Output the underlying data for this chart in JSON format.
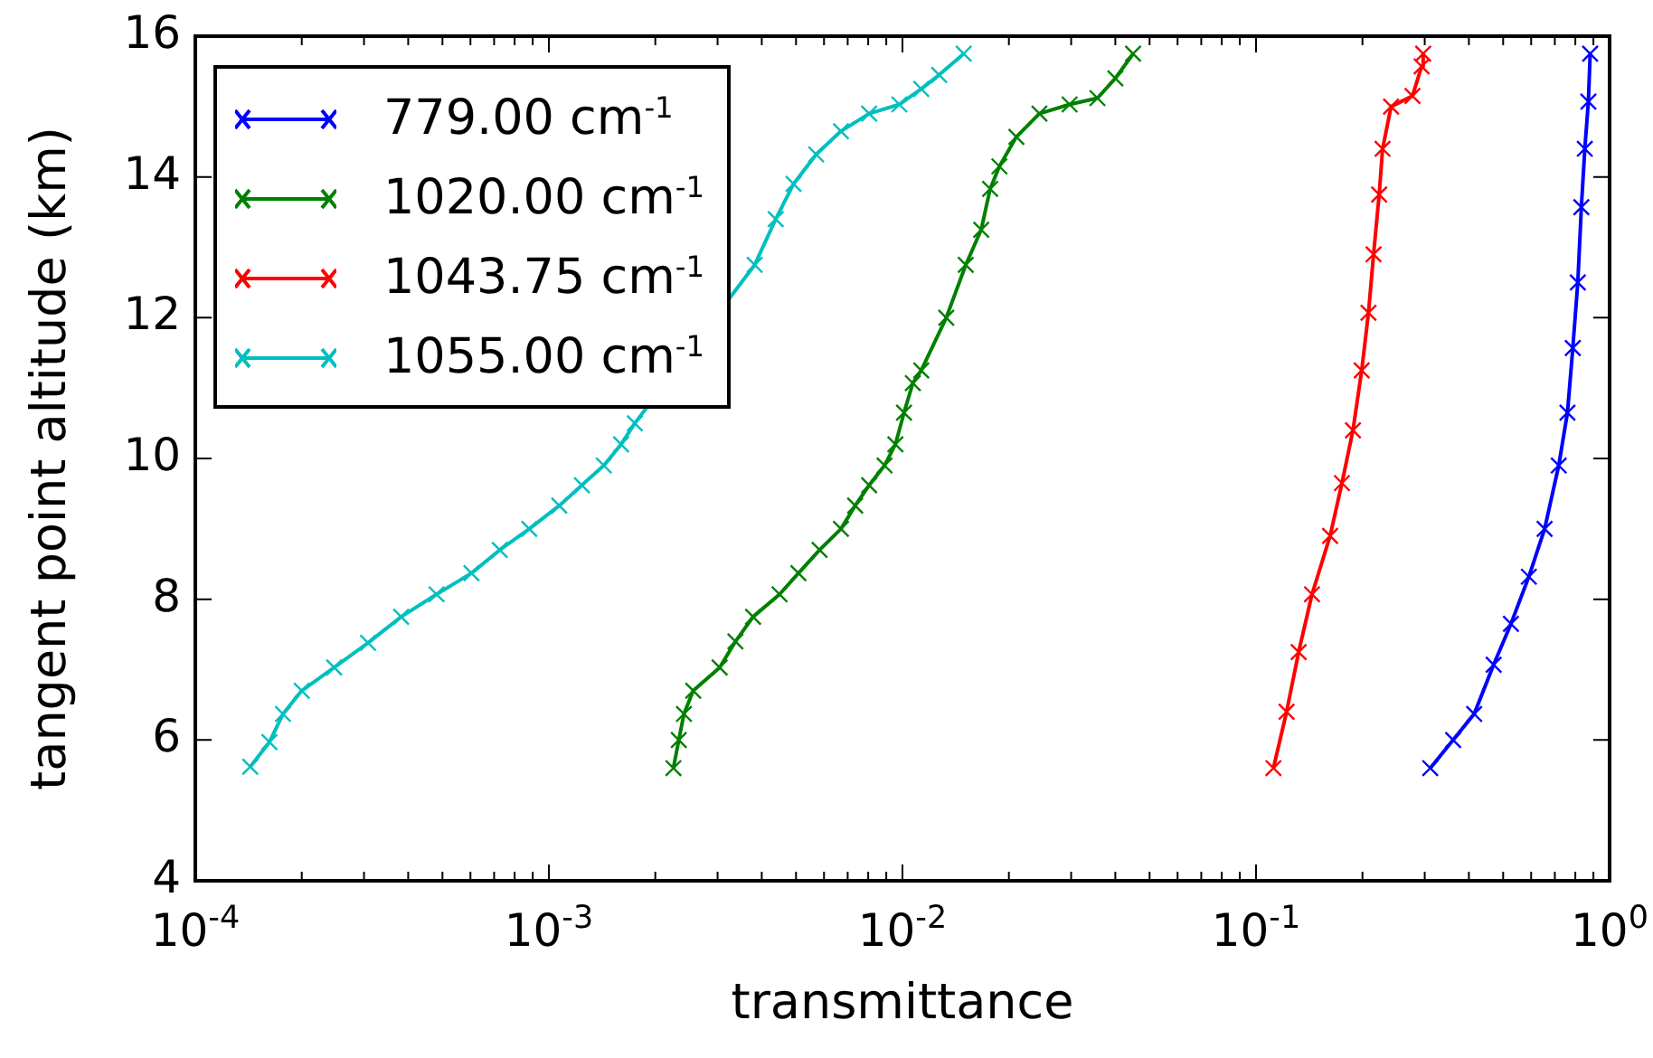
{
  "chart_data": {
    "type": "line",
    "xlabel": "transmittance",
    "ylabel": "tangent point altitude (km)",
    "log": "x",
    "xlim": [
      0.0001,
      1
    ],
    "ylim": [
      4,
      16
    ],
    "xticks": [
      {
        "value": 0.0001,
        "label": "10$^{-4}$"
      },
      {
        "value": 0.0002,
        "label": null
      },
      {
        "value": 0.0003,
        "label": null
      },
      {
        "value": 0.0004,
        "label": null
      },
      {
        "value": 0.0005,
        "label": null
      },
      {
        "value": 0.0006,
        "label": null
      },
      {
        "value": 0.0007,
        "label": null
      },
      {
        "value": 0.0008,
        "label": null
      },
      {
        "value": 0.0009,
        "label": null
      },
      {
        "value": 0.001,
        "label": "10$^{-3}$"
      },
      {
        "value": 0.002,
        "label": null
      },
      {
        "value": 0.003,
        "label": null
      },
      {
        "value": 0.004,
        "label": null
      },
      {
        "value": 0.005,
        "label": null
      },
      {
        "value": 0.006,
        "label": null
      },
      {
        "value": 0.007,
        "label": null
      },
      {
        "value": 0.008,
        "label": null
      },
      {
        "value": 0.009,
        "label": null
      },
      {
        "value": 0.01,
        "label": "10$^{-2}$"
      },
      {
        "value": 0.02,
        "label": null
      },
      {
        "value": 0.03,
        "label": null
      },
      {
        "value": 0.04,
        "label": null
      },
      {
        "value": 0.05,
        "label": null
      },
      {
        "value": 0.06,
        "label": null
      },
      {
        "value": 0.07,
        "label": null
      },
      {
        "value": 0.08,
        "label": null
      },
      {
        "value": 0.09,
        "label": null
      },
      {
        "value": 0.1,
        "label": "10$^{-1}$"
      },
      {
        "value": 0.2,
        "label": null
      },
      {
        "value": 0.3,
        "label": null
      },
      {
        "value": 0.4,
        "label": null
      },
      {
        "value": 0.5,
        "label": null
      },
      {
        "value": 0.6,
        "label": null
      },
      {
        "value": 0.7,
        "label": null
      },
      {
        "value": 0.8,
        "label": null
      },
      {
        "value": 0.9,
        "label": null
      },
      {
        "value": 1,
        "label": "10$^{0}$"
      }
    ],
    "yticks": [
      4,
      6,
      8,
      10,
      12,
      14,
      16
    ],
    "grid": false,
    "legend": "top left",
    "marker": "cross",
    "line_style": "solid",
    "series": [
      {
        "name": "779.00 cm$^{-1}$",
        "color": "#0000ff",
        "x": [
          0.311,
          0.361,
          0.414,
          0.47,
          0.526,
          0.591,
          0.655,
          0.718,
          0.76,
          0.787,
          0.813,
          0.832,
          0.851,
          0.871,
          0.881
        ],
        "values": [
          5.6,
          6.0,
          6.37,
          7.07,
          7.65,
          8.32,
          9.0,
          9.9,
          10.65,
          11.57,
          12.5,
          13.57,
          14.4,
          15.07,
          15.75
        ]
      },
      {
        "name": "1020.00 cm$^{-1}$",
        "color": "#008000",
        "x": [
          0.00225,
          0.00233,
          0.00241,
          0.00256,
          0.00304,
          0.00337,
          0.00378,
          0.00449,
          0.00508,
          0.00583,
          0.0067,
          0.00735,
          0.00805,
          0.0089,
          0.00955,
          0.0101,
          0.0107,
          0.0113,
          0.0133,
          0.0151,
          0.0167,
          0.0177,
          0.0188,
          0.021,
          0.0244,
          0.0297,
          0.0356,
          0.04,
          0.0449
        ],
        "values": [
          5.6,
          6.0,
          6.37,
          6.7,
          7.03,
          7.4,
          7.75,
          8.07,
          8.37,
          8.7,
          9.0,
          9.33,
          9.62,
          9.9,
          10.2,
          10.65,
          11.07,
          11.25,
          12.0,
          12.75,
          13.25,
          13.83,
          14.15,
          14.57,
          14.9,
          15.03,
          15.12,
          15.4,
          15.75
        ]
      },
      {
        "name": "1043.75 cm$^{-1}$",
        "color": "#ff0000",
        "x": [
          0.112,
          0.122,
          0.132,
          0.144,
          0.162,
          0.175,
          0.188,
          0.199,
          0.208,
          0.215,
          0.223,
          0.228,
          0.241,
          0.277,
          0.294,
          0.297
        ],
        "values": [
          5.6,
          6.4,
          7.25,
          8.07,
          8.9,
          9.65,
          10.4,
          11.25,
          12.07,
          12.9,
          13.75,
          14.4,
          15.0,
          15.15,
          15.57,
          15.75
        ]
      },
      {
        "name": "1055.00 cm$^{-1}$",
        "color": "#00bfbf",
        "x": [
          0.000143,
          0.000162,
          0.000177,
          0.0002,
          0.000247,
          0.000308,
          0.000382,
          0.000481,
          0.000604,
          0.000726,
          0.00088,
          0.00107,
          0.00124,
          0.00143,
          0.0016,
          0.00175,
          0.00382,
          0.00438,
          0.00492,
          0.0057,
          0.0067,
          0.00805,
          0.0098,
          0.0113,
          0.0127,
          0.0149
        ],
        "values": [
          5.62,
          5.97,
          6.37,
          6.7,
          7.03,
          7.38,
          7.75,
          8.07,
          8.37,
          8.7,
          9.0,
          9.33,
          9.62,
          9.9,
          10.2,
          10.5,
          12.75,
          13.4,
          13.9,
          14.32,
          14.65,
          14.9,
          15.03,
          15.25,
          15.45,
          15.75
        ]
      }
    ]
  }
}
